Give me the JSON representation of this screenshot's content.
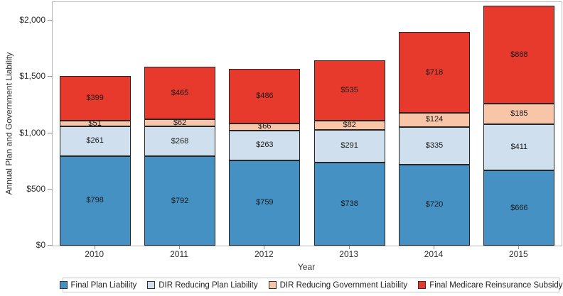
{
  "chart_data": {
    "type": "bar",
    "stacked": true,
    "xlabel": "Year",
    "ylabel": "Annual Plan and Government Liability",
    "categories": [
      "2010",
      "2011",
      "2012",
      "2013",
      "2014",
      "2015"
    ],
    "series": [
      {
        "name": "Final Plan Liability",
        "color": "#4591c4",
        "values": [
          798,
          792,
          759,
          738,
          720,
          666
        ]
      },
      {
        "name": "DIR Reducing Plan Liability",
        "color": "#cfdfee",
        "values": [
          261,
          268,
          263,
          291,
          335,
          411
        ]
      },
      {
        "name": "DIR Reducing Government Liability",
        "color": "#f8c5a8",
        "values": [
          51,
          62,
          66,
          82,
          124,
          185
        ]
      },
      {
        "name": "Final Medicare Reinsurance Subsidy",
        "color": "#e8392d",
        "values": [
          399,
          465,
          486,
          535,
          718,
          868
        ]
      }
    ],
    "data_labels": [
      [
        "$798",
        "$792",
        "$759",
        "$738",
        "$720",
        "$666"
      ],
      [
        "$261",
        "$268",
        "$263",
        "$291",
        "$335",
        "$411"
      ],
      [
        "$51",
        "$62",
        "$66",
        "$82",
        "$124",
        "$185"
      ],
      [
        "$399",
        "$465",
        "$486",
        "$535",
        "$718",
        "$868"
      ]
    ],
    "ylim": [
      0,
      2000
    ],
    "yticks": [
      {
        "value": 0,
        "label": "$0"
      },
      {
        "value": 500,
        "label": "$500"
      },
      {
        "value": 1000,
        "label": "$1,000"
      },
      {
        "value": 1500,
        "label": "$1,500"
      },
      {
        "value": 2000,
        "label": "$2,000"
      }
    ],
    "value_prefix": "$",
    "grid": false,
    "legend_position": "bottom",
    "colors": {
      "bar_border": "#262626",
      "plot_border": "#b9b9b9",
      "tick": "#8e8e8e",
      "label_text": "#1a1a1a"
    }
  }
}
